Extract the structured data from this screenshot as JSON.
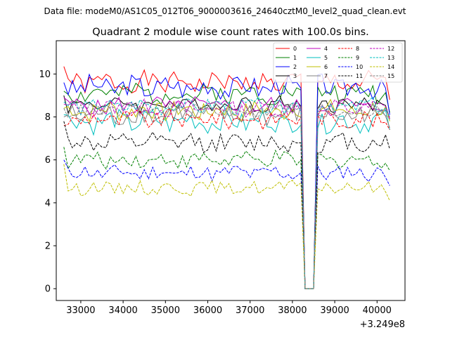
{
  "figure": {
    "suptitle": "Data file: modeM0/AS1C05_012T06_9000003616_24640cztM0_level2_quad_clean.evt"
  },
  "chart_data": {
    "type": "line",
    "title": "Quadrant 2 module wise count rates with 100.0s bins.",
    "xlabel": "",
    "ylabel": "",
    "x_offset_label": "+3.249e8",
    "x_offset": 324900000,
    "xlim": [
      32420,
      40660
    ],
    "ylim": [
      -0.55,
      11.55
    ],
    "xticks": [
      33000,
      34000,
      35000,
      36000,
      37000,
      38000,
      39000,
      40000
    ],
    "xtick_labels": [
      "33000",
      "34000",
      "35000",
      "36000",
      "37000",
      "38000",
      "39000",
      "40000"
    ],
    "yticks": [
      0,
      2,
      4,
      6,
      8,
      10
    ],
    "ytick_labels": [
      "0",
      "2",
      "4",
      "6",
      "8",
      "10"
    ],
    "legend_position": "upper right",
    "legend_columns": 4,
    "x_start": 32600,
    "x_step": 100,
    "x_count": 78,
    "gap_start_index": 57,
    "gap_length": 3,
    "series": [
      {
        "name": "0",
        "color": "#ff0000",
        "dash": "solid",
        "level": 9.6,
        "amp": 0.45,
        "seed": 1,
        "start": 10.35,
        "end": 8.8
      },
      {
        "name": "1",
        "color": "#008000",
        "dash": "solid",
        "level": 9.1,
        "amp": 0.45,
        "seed": 2,
        "start": 9.2,
        "end": 8.2
      },
      {
        "name": "2",
        "color": "#0000ff",
        "dash": "solid",
        "level": 9.4,
        "amp": 0.5,
        "seed": 3,
        "start": 9.6,
        "end": 8.1
      },
      {
        "name": "3",
        "color": "#000000",
        "dash": "solid",
        "level": 8.6,
        "amp": 0.35,
        "seed": 4,
        "start": 9.0,
        "end": 7.9
      },
      {
        "name": "4",
        "color": "#bf00bf",
        "dash": "solid",
        "level": 8.5,
        "amp": 0.4,
        "seed": 5,
        "start": 8.9,
        "end": 8.0
      },
      {
        "name": "5",
        "color": "#00bfbf",
        "dash": "solid",
        "level": 7.8,
        "amp": 0.5,
        "seed": 6,
        "start": 8.1,
        "end": 7.4
      },
      {
        "name": "6",
        "color": "#bfbf00",
        "dash": "solid",
        "level": 8.3,
        "amp": 0.45,
        "seed": 7,
        "start": 8.4,
        "end": 7.8
      },
      {
        "name": "7",
        "color": "#808080",
        "dash": "solid",
        "level": 8.1,
        "amp": 0.5,
        "seed": 8,
        "start": 8.0,
        "end": 7.5
      },
      {
        "name": "8",
        "color": "#ff0000",
        "dash": "dashed",
        "level": 7.9,
        "amp": 0.4,
        "seed": 9,
        "start": 7.6,
        "end": 7.4
      },
      {
        "name": "9",
        "color": "#008000",
        "dash": "dashed",
        "level": 6.0,
        "amp": 0.35,
        "seed": 10,
        "start": 6.6,
        "end": 5.5
      },
      {
        "name": "10",
        "color": "#0000ff",
        "dash": "dashed",
        "level": 5.4,
        "amp": 0.35,
        "seed": 11,
        "start": 6.0,
        "end": 4.8
      },
      {
        "name": "11",
        "color": "#000000",
        "dash": "dashed",
        "level": 6.8,
        "amp": 0.4,
        "seed": 12,
        "start": 7.8,
        "end": 6.5
      },
      {
        "name": "12",
        "color": "#bf00bf",
        "dash": "dashed",
        "level": 8.4,
        "amp": 0.35,
        "seed": 13,
        "start": 8.6,
        "end": 7.9
      },
      {
        "name": "13",
        "color": "#00bfbf",
        "dash": "dashed",
        "level": 8.5,
        "amp": 0.35,
        "seed": 14,
        "start": 8.7,
        "end": 8.0
      },
      {
        "name": "14",
        "color": "#bfbf00",
        "dash": "dashed",
        "level": 4.7,
        "amp": 0.3,
        "seed": 15,
        "start": 5.8,
        "end": 4.1
      },
      {
        "name": "15",
        "color": "#808080",
        "dash": "dashed",
        "level": 8.3,
        "amp": 0.3,
        "seed": 16,
        "start": 8.4,
        "end": 7.9
      }
    ]
  }
}
